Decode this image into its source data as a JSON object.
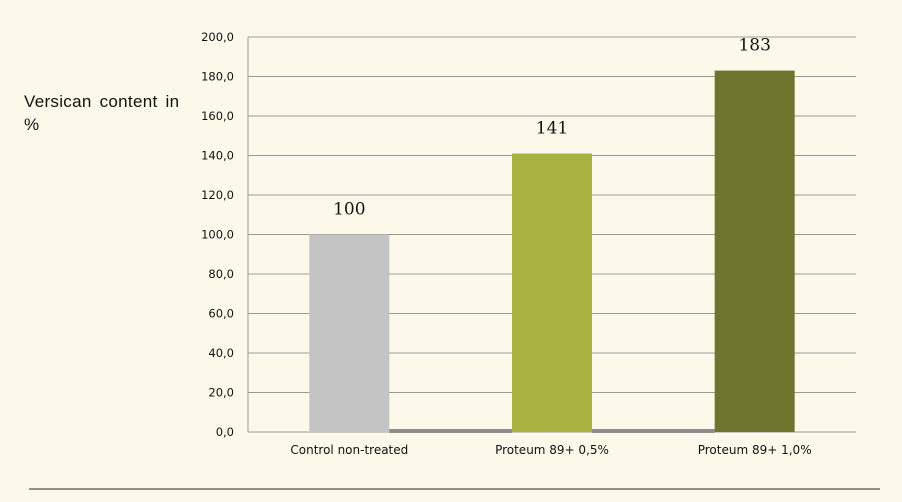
{
  "chart_data": {
    "type": "bar",
    "ylabel": "Versican content in %",
    "xlabel": "",
    "categories": [
      "Control non-treated",
      "Proteum 89+ 0,5%",
      "Proteum 89+ 1,0%"
    ],
    "values": [
      100,
      141,
      183
    ],
    "data_labels": [
      "100",
      "141",
      "183"
    ],
    "ylim": [
      0,
      200
    ],
    "yticks": [
      "0,0",
      "20,0",
      "40,0",
      "60,0",
      "80,0",
      "100,0",
      "120,0",
      "140,0",
      "160,0",
      "180,0",
      "200,0"
    ],
    "grid": true,
    "legend": "none",
    "colors": [
      "#c4c4c4",
      "#a9b23f",
      "#6f752c"
    ],
    "grid_color": "#9a9a9a",
    "baseline_color": "#8c8c8c"
  }
}
